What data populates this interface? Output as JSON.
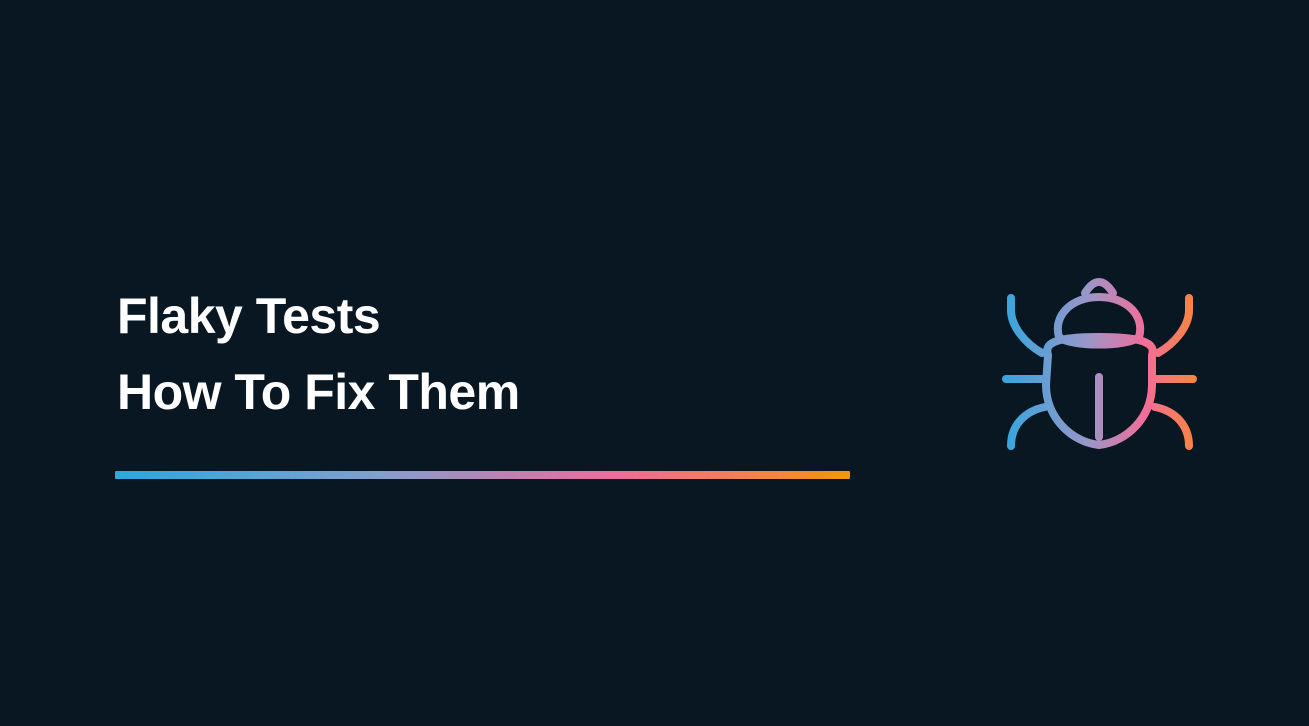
{
  "hero": {
    "title_line_1": "Flaky Tests",
    "title_line_2": "How To Fix Them",
    "icon": "bug-icon"
  },
  "colors": {
    "background": "#081721",
    "text": "#ffffff",
    "gradient": [
      "#29a9e0",
      "#7fa0cf",
      "#f06a9b",
      "#f6930f"
    ]
  }
}
